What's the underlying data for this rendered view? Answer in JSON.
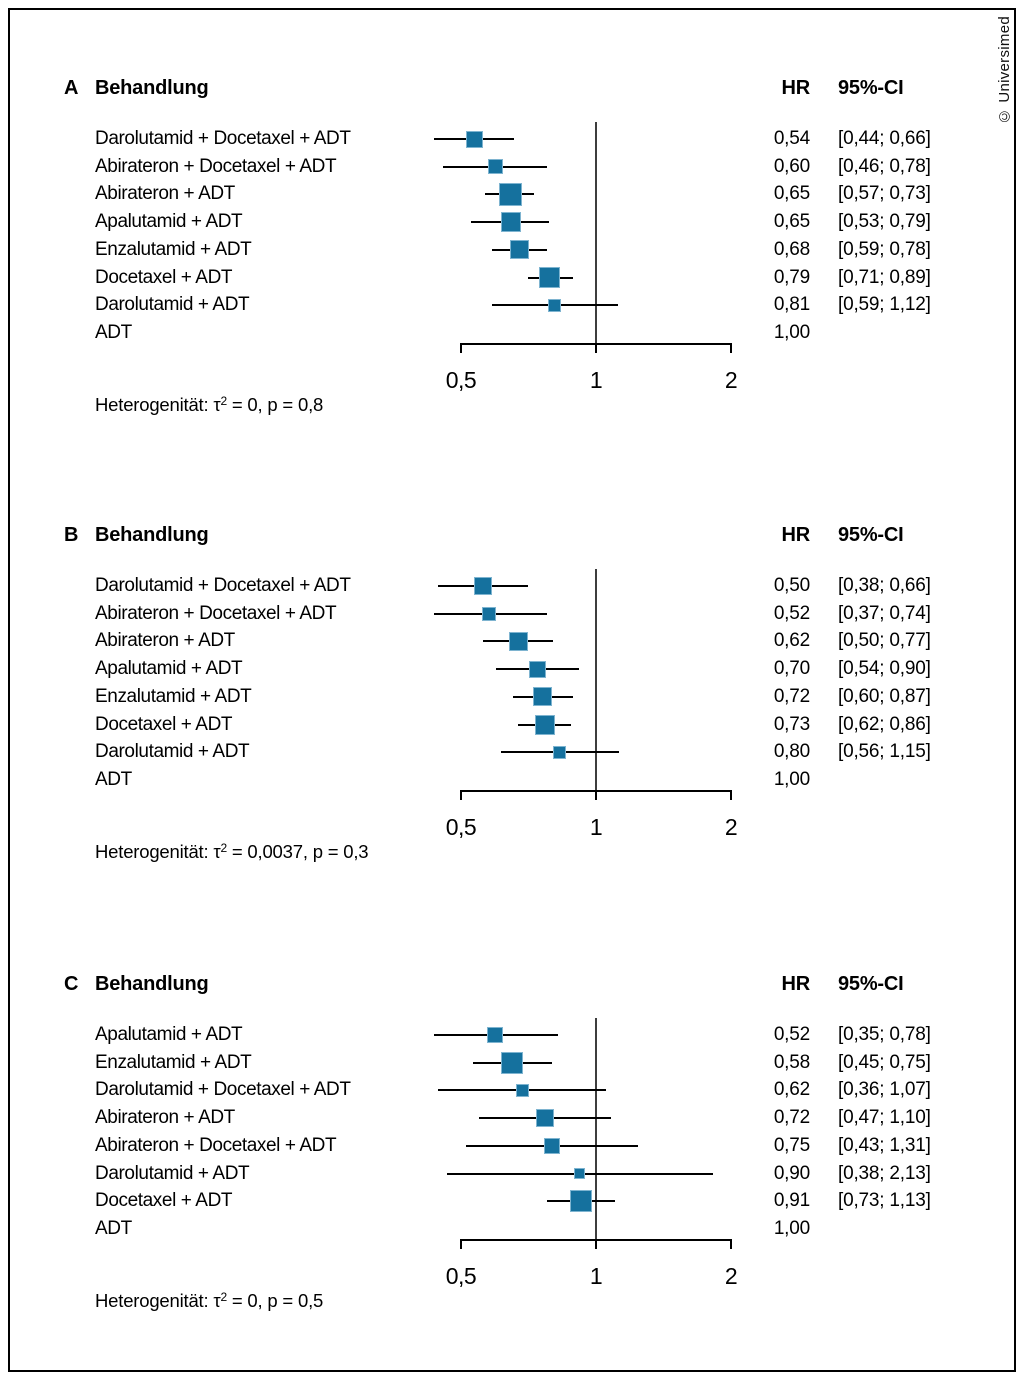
{
  "copyright": "© Universimed",
  "chart_data": {
    "type": "forest",
    "x_axis": {
      "scale": "log",
      "tick_values": [
        0.5,
        1,
        2
      ],
      "tick_labels": [
        "0,5",
        "1",
        "2"
      ],
      "reference_line": 1,
      "range_shown": [
        0.5,
        2
      ]
    },
    "marker_color": "#15719E",
    "panels": [
      {
        "panel_label": "A",
        "column_headers": {
          "treatment": "Behandlung",
          "hr": "HR",
          "ci": "95%-CI"
        },
        "heterogeneity": {
          "before_sup": "Heterogenität: τ",
          "sup": "2",
          "after_sup": " = 0, p = 0,8"
        },
        "rows": [
          {
            "treatment": "Darolutamid + Docetaxel + ADT",
            "hr": 0.54,
            "ci_low": 0.44,
            "ci_high": 0.66,
            "hr_label": "0,54",
            "ci_label": "[0,44; 0,66]",
            "marker_size": 15
          },
          {
            "treatment": "Abirateron + Docetaxel + ADT",
            "hr": 0.6,
            "ci_low": 0.46,
            "ci_high": 0.78,
            "hr_label": "0,60",
            "ci_label": "[0,46; 0,78]",
            "marker_size": 13
          },
          {
            "treatment": "Abirateron + ADT",
            "hr": 0.65,
            "ci_low": 0.57,
            "ci_high": 0.73,
            "hr_label": "0,65",
            "ci_label": "[0,57; 0,73]",
            "marker_size": 21
          },
          {
            "treatment": "Apalutamid + ADT",
            "hr": 0.65,
            "ci_low": 0.53,
            "ci_high": 0.79,
            "hr_label": "0,65",
            "ci_label": "[0,53; 0,79]",
            "marker_size": 18
          },
          {
            "treatment": "Enzalutamid + ADT",
            "hr": 0.68,
            "ci_low": 0.59,
            "ci_high": 0.78,
            "hr_label": "0,68",
            "ci_label": "[0,59; 0,78]",
            "marker_size": 17
          },
          {
            "treatment": "Docetaxel + ADT",
            "hr": 0.79,
            "ci_low": 0.71,
            "ci_high": 0.89,
            "hr_label": "0,79",
            "ci_label": "[0,71; 0,89]",
            "marker_size": 19
          },
          {
            "treatment": "Darolutamid + ADT",
            "hr": 0.81,
            "ci_low": 0.59,
            "ci_high": 1.12,
            "hr_label": "0,81",
            "ci_label": "[0,59; 1,12]",
            "marker_size": 11
          },
          {
            "treatment": "ADT",
            "hr": 1.0,
            "ci_low": null,
            "ci_high": null,
            "hr_label": "1,00",
            "ci_label": "",
            "marker_size": 0
          }
        ]
      },
      {
        "panel_label": "B",
        "column_headers": {
          "treatment": "Behandlung",
          "hr": "HR",
          "ci": "95%-CI"
        },
        "heterogeneity": {
          "before_sup": "Heterogenität: τ",
          "sup": "2",
          "after_sup": " = 0,0037, p = 0,3"
        },
        "rows": [
          {
            "treatment": "Darolutamid + Docetaxel + ADT",
            "hr": 0.5,
            "ci_low": 0.38,
            "ci_high": 0.66,
            "hr_label": "0,50",
            "ci_label": "[0,38; 0,66]",
            "marker_size": 16
          },
          {
            "treatment": "Abirateron + Docetaxel + ADT",
            "hr": 0.52,
            "ci_low": 0.37,
            "ci_high": 0.74,
            "hr_label": "0,52",
            "ci_label": "[0,37; 0,74]",
            "marker_size": 12
          },
          {
            "treatment": "Abirateron + ADT",
            "hr": 0.62,
            "ci_low": 0.5,
            "ci_high": 0.77,
            "hr_label": "0,62",
            "ci_label": "[0,50; 0,77]",
            "marker_size": 17
          },
          {
            "treatment": "Apalutamid + ADT",
            "hr": 0.7,
            "ci_low": 0.54,
            "ci_high": 0.9,
            "hr_label": "0,70",
            "ci_label": "[0,54; 0,90]",
            "marker_size": 15
          },
          {
            "treatment": "Enzalutamid + ADT",
            "hr": 0.72,
            "ci_low": 0.6,
            "ci_high": 0.87,
            "hr_label": "0,72",
            "ci_label": "[0,60; 0,87]",
            "marker_size": 17
          },
          {
            "treatment": "Docetaxel + ADT",
            "hr": 0.73,
            "ci_low": 0.62,
            "ci_high": 0.86,
            "hr_label": "0,73",
            "ci_label": "[0,62; 0,86]",
            "marker_size": 18
          },
          {
            "treatment": "Darolutamid + ADT",
            "hr": 0.8,
            "ci_low": 0.56,
            "ci_high": 1.15,
            "hr_label": "0,80",
            "ci_label": "[0,56; 1,15]",
            "marker_size": 11
          },
          {
            "treatment": "ADT",
            "hr": 1.0,
            "ci_low": null,
            "ci_high": null,
            "hr_label": "1,00",
            "ci_label": "",
            "marker_size": 0
          }
        ]
      },
      {
        "panel_label": "C",
        "column_headers": {
          "treatment": "Behandlung",
          "hr": "HR",
          "ci": "95%-CI"
        },
        "heterogeneity": {
          "before_sup": "Heterogenität: τ",
          "sup": "2",
          "after_sup": " = 0, p = 0,5"
        },
        "rows": [
          {
            "treatment": "Apalutamid + ADT",
            "hr": 0.52,
            "ci_low": 0.35,
            "ci_high": 0.78,
            "hr_label": "0,52",
            "ci_label": "[0,35; 0,78]",
            "marker_size": 14
          },
          {
            "treatment": "Enzalutamid + ADT",
            "hr": 0.58,
            "ci_low": 0.45,
            "ci_high": 0.75,
            "hr_label": "0,58",
            "ci_label": "[0,45; 0,75]",
            "marker_size": 20
          },
          {
            "treatment": "Darolutamid + Docetaxel + ADT",
            "hr": 0.62,
            "ci_low": 0.36,
            "ci_high": 1.07,
            "hr_label": "0,62",
            "ci_label": "[0,36; 1,07]",
            "marker_size": 11
          },
          {
            "treatment": "Abirateron + ADT",
            "hr": 0.72,
            "ci_low": 0.47,
            "ci_high": 1.1,
            "hr_label": "0,72",
            "ci_label": "[0,47; 1,10]",
            "marker_size": 16
          },
          {
            "treatment": "Abirateron + Docetaxel + ADT",
            "hr": 0.75,
            "ci_low": 0.43,
            "ci_high": 1.31,
            "hr_label": "0,75",
            "ci_label": "[0,43; 1,31]",
            "marker_size": 14
          },
          {
            "treatment": "Darolutamid + ADT",
            "hr": 0.9,
            "ci_low": 0.38,
            "ci_high": 2.13,
            "hr_label": "0,90",
            "ci_label": "[0,38; 2,13]",
            "marker_size": 9
          },
          {
            "treatment": "Docetaxel + ADT",
            "hr": 0.91,
            "ci_low": 0.73,
            "ci_high": 1.13,
            "hr_label": "0,91",
            "ci_label": "[0,73; 1,13]",
            "marker_size": 20
          },
          {
            "treatment": "ADT",
            "hr": 1.0,
            "ci_low": null,
            "ci_high": null,
            "hr_label": "1,00",
            "ci_label": "",
            "marker_size": 0
          }
        ]
      }
    ]
  }
}
